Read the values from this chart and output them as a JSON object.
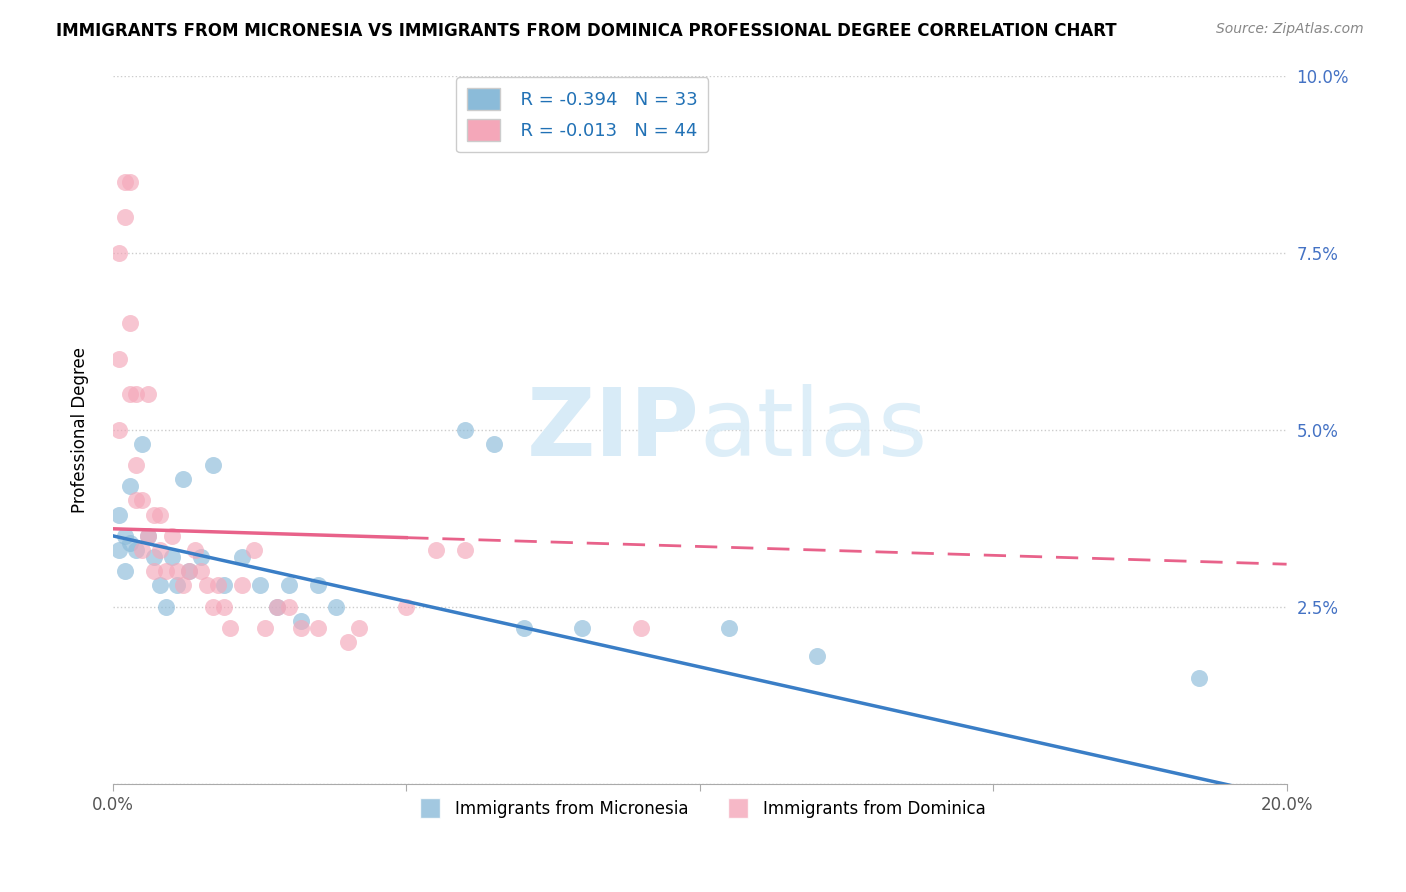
{
  "title": "IMMIGRANTS FROM MICRONESIA VS IMMIGRANTS FROM DOMINICA PROFESSIONAL DEGREE CORRELATION CHART",
  "source": "Source: ZipAtlas.com",
  "ylabel": "Professional Degree",
  "xlim": [
    0.0,
    0.2
  ],
  "ylim": [
    0.0,
    0.1
  ],
  "xticks": [
    0.0,
    0.05,
    0.1,
    0.15,
    0.2
  ],
  "yticks": [
    0.0,
    0.025,
    0.05,
    0.075,
    0.1
  ],
  "xticklabels": [
    "0.0%",
    "",
    "",
    "",
    "20.0%"
  ],
  "yticklabels": [
    "",
    "2.5%",
    "5.0%",
    "7.5%",
    "10.0%"
  ],
  "legend_r1": "R = -0.394",
  "legend_n1": "N = 33",
  "legend_r2": "R = -0.013",
  "legend_n2": "N = 44",
  "blue_color": "#8BBBD9",
  "pink_color": "#F4A7B9",
  "blue_line_color": "#3A7EC6",
  "pink_line_color": "#E8628A",
  "watermark_color": "#D8EBF7",
  "blue_trend_start": 0.035,
  "blue_trend_end": -0.002,
  "pink_trend_start": 0.036,
  "pink_trend_end": 0.031,
  "micronesia_x": [
    0.001,
    0.001,
    0.002,
    0.002,
    0.003,
    0.003,
    0.004,
    0.005,
    0.006,
    0.007,
    0.008,
    0.009,
    0.01,
    0.011,
    0.012,
    0.013,
    0.015,
    0.017,
    0.019,
    0.022,
    0.025,
    0.028,
    0.03,
    0.032,
    0.035,
    0.038,
    0.06,
    0.065,
    0.07,
    0.08,
    0.105,
    0.12,
    0.185
  ],
  "micronesia_y": [
    0.033,
    0.038,
    0.03,
    0.035,
    0.034,
    0.042,
    0.033,
    0.048,
    0.035,
    0.032,
    0.028,
    0.025,
    0.032,
    0.028,
    0.043,
    0.03,
    0.032,
    0.045,
    0.028,
    0.032,
    0.028,
    0.025,
    0.028,
    0.023,
    0.028,
    0.025,
    0.05,
    0.048,
    0.022,
    0.022,
    0.022,
    0.018,
    0.015
  ],
  "dominica_x": [
    0.001,
    0.001,
    0.001,
    0.002,
    0.002,
    0.003,
    0.003,
    0.003,
    0.004,
    0.004,
    0.004,
    0.005,
    0.005,
    0.006,
    0.006,
    0.007,
    0.007,
    0.008,
    0.008,
    0.009,
    0.01,
    0.011,
    0.012,
    0.013,
    0.014,
    0.015,
    0.016,
    0.017,
    0.018,
    0.019,
    0.02,
    0.022,
    0.024,
    0.026,
    0.028,
    0.03,
    0.032,
    0.035,
    0.04,
    0.042,
    0.05,
    0.055,
    0.06,
    0.09
  ],
  "dominica_y": [
    0.05,
    0.06,
    0.075,
    0.08,
    0.085,
    0.085,
    0.055,
    0.065,
    0.04,
    0.045,
    0.055,
    0.033,
    0.04,
    0.055,
    0.035,
    0.03,
    0.038,
    0.033,
    0.038,
    0.03,
    0.035,
    0.03,
    0.028,
    0.03,
    0.033,
    0.03,
    0.028,
    0.025,
    0.028,
    0.025,
    0.022,
    0.028,
    0.033,
    0.022,
    0.025,
    0.025,
    0.022,
    0.022,
    0.02,
    0.022,
    0.025,
    0.033,
    0.033,
    0.022
  ]
}
